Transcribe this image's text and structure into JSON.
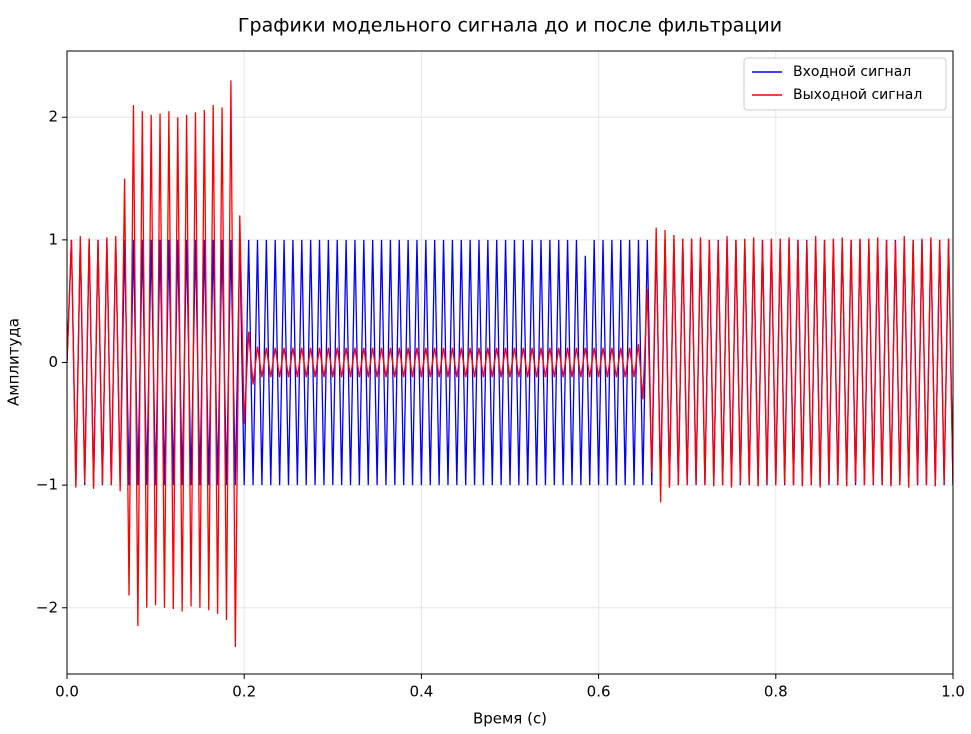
{
  "chart_data": {
    "type": "line",
    "title": "Графики модельного сигнала до и после фильтрации",
    "xlabel": "Время (с)",
    "ylabel": "Амплитуда",
    "x": [
      0,
      0.005,
      0.01,
      0.015,
      0.02,
      0.025,
      0.03,
      0.035,
      0.04,
      0.045,
      0.05,
      0.055,
      0.06,
      0.065,
      0.07,
      0.075,
      0.08,
      0.085,
      0.09,
      0.095,
      0.1,
      0.105,
      0.11,
      0.115,
      0.12,
      0.125,
      0.13,
      0.135,
      0.14,
      0.145,
      0.15,
      0.155,
      0.16,
      0.165,
      0.17,
      0.175,
      0.18,
      0.185,
      0.19,
      0.195,
      0.2,
      0.205,
      0.21,
      0.215,
      0.22,
      0.225,
      0.23,
      0.235,
      0.24,
      0.245,
      0.25,
      0.255,
      0.26,
      0.265,
      0.27,
      0.275,
      0.28,
      0.285,
      0.29,
      0.295,
      0.3,
      0.305,
      0.31,
      0.315,
      0.32,
      0.325,
      0.33,
      0.335,
      0.34,
      0.345,
      0.35,
      0.355,
      0.36,
      0.365,
      0.37,
      0.375,
      0.38,
      0.385,
      0.39,
      0.395,
      0.4,
      0.405,
      0.41,
      0.415,
      0.42,
      0.425,
      0.43,
      0.435,
      0.44,
      0.445,
      0.45,
      0.455,
      0.46,
      0.465,
      0.47,
      0.475,
      0.48,
      0.485,
      0.49,
      0.495,
      0.5,
      0.505,
      0.51,
      0.515,
      0.52,
      0.525,
      0.53,
      0.535,
      0.54,
      0.545,
      0.55,
      0.555,
      0.56,
      0.565,
      0.57,
      0.575,
      0.58,
      0.585,
      0.59,
      0.595,
      0.6,
      0.605,
      0.61,
      0.615,
      0.62,
      0.625,
      0.63,
      0.635,
      0.64,
      0.645,
      0.65,
      0.655,
      0.66,
      0.665,
      0.67,
      0.675,
      0.68,
      0.685,
      0.69,
      0.695,
      0.7,
      0.705,
      0.71,
      0.715,
      0.72,
      0.725,
      0.73,
      0.735,
      0.74,
      0.745,
      0.75,
      0.755,
      0.76,
      0.765,
      0.77,
      0.775,
      0.78,
      0.785,
      0.79,
      0.795,
      0.8,
      0.805,
      0.81,
      0.815,
      0.82,
      0.825,
      0.83,
      0.835,
      0.84,
      0.845,
      0.85,
      0.855,
      0.86,
      0.865,
      0.87,
      0.875,
      0.88,
      0.885,
      0.89,
      0.895,
      0.9,
      0.905,
      0.91,
      0.915,
      0.92,
      0.925,
      0.93,
      0.935,
      0.94,
      0.945,
      0.95,
      0.955,
      0.96,
      0.965,
      0.97,
      0.975,
      0.98,
      0.985,
      0.99,
      0.995,
      1
    ],
    "series": [
      {
        "name": "Входной сигнал",
        "color": "#0000ff",
        "values": [
          0,
          1,
          -1,
          1,
          -1,
          1,
          -1,
          1,
          -1,
          1,
          -1,
          1,
          -1,
          1,
          -1,
          1,
          -1,
          1,
          -1,
          1,
          -1,
          1,
          -1,
          1,
          -1,
          1,
          -1,
          1,
          -1,
          1,
          -1,
          1,
          -1,
          1,
          -1,
          1,
          -1,
          1,
          -1,
          1,
          -1,
          1,
          -1,
          1,
          -1,
          1,
          -1,
          1,
          -1,
          1,
          -1,
          1,
          -1,
          1,
          -1,
          1,
          -1,
          1,
          -1,
          1,
          -1,
          1,
          -1,
          1,
          -1,
          1,
          -1,
          1,
          -1,
          1,
          -1,
          1,
          -1,
          1,
          -1,
          1,
          -1,
          1,
          -1,
          1,
          -1,
          1,
          -1,
          1,
          -1,
          1,
          -1,
          1,
          -1,
          1,
          -1,
          1,
          -1,
          1,
          -1,
          1,
          -1,
          1,
          -1,
          1,
          -1,
          1,
          -1,
          1,
          -1,
          1,
          -1,
          1,
          -1,
          1,
          -1,
          1,
          -1,
          1,
          -1,
          1,
          -1,
          0.87,
          -1,
          1,
          -1,
          1,
          -1,
          1,
          -1,
          1,
          -1,
          1,
          -1,
          1,
          -1,
          1,
          -1,
          1,
          -1,
          1,
          -1,
          1,
          -1,
          1,
          -1,
          1,
          -1,
          1,
          -1,
          1,
          -1,
          1,
          -1,
          1,
          -1,
          1,
          -1,
          1,
          -1,
          1,
          -1,
          1,
          -1,
          1,
          -1,
          1,
          -1,
          1,
          -1,
          1,
          -1,
          1,
          -1,
          1,
          -1,
          1,
          -1,
          1,
          -1,
          1,
          -1,
          1,
          -1,
          1,
          -1,
          1,
          -1,
          1,
          -1,
          1,
          -1,
          1,
          -1,
          1,
          -1,
          1,
          -1,
          1,
          -1,
          1,
          -1,
          1,
          -1,
          1,
          -1
        ]
      },
      {
        "name": "Выходной сигнал",
        "color": "#ff0000",
        "values": [
          0,
          1.0,
          -1.02,
          1.03,
          -0.98,
          1.01,
          -1.03,
          1.0,
          -0.99,
          1.02,
          -1.0,
          1.03,
          -1.05,
          1.5,
          -1.9,
          2.1,
          -2.15,
          2.05,
          -2.0,
          2.02,
          -1.98,
          2.03,
          -2.0,
          2.05,
          -2.01,
          2.0,
          -2.03,
          2.02,
          -1.99,
          2.04,
          -2.0,
          2.06,
          -2.02,
          2.1,
          -2.05,
          2.08,
          -2.1,
          2.3,
          -2.32,
          1.2,
          -0.5,
          0.25,
          -0.18,
          0.13,
          -0.12,
          0.12,
          -0.12,
          0.12,
          -0.12,
          0.12,
          -0.12,
          0.12,
          -0.12,
          0.12,
          -0.12,
          0.12,
          -0.12,
          0.12,
          -0.12,
          0.12,
          -0.12,
          0.12,
          -0.12,
          0.12,
          -0.12,
          0.12,
          -0.12,
          0.12,
          -0.12,
          0.12,
          -0.12,
          0.12,
          -0.12,
          0.12,
          -0.12,
          0.12,
          -0.12,
          0.12,
          -0.12,
          0.12,
          -0.12,
          0.12,
          -0.12,
          0.12,
          -0.12,
          0.12,
          -0.12,
          0.12,
          -0.12,
          0.12,
          -0.12,
          0.12,
          -0.12,
          0.12,
          -0.12,
          0.12,
          -0.12,
          0.12,
          -0.12,
          0.12,
          -0.12,
          0.12,
          -0.12,
          0.12,
          -0.12,
          0.12,
          -0.12,
          0.12,
          -0.12,
          0.12,
          -0.12,
          0.12,
          -0.12,
          0.12,
          -0.12,
          0.12,
          -0.12,
          0.12,
          -0.12,
          0.12,
          -0.12,
          0.12,
          -0.12,
          0.12,
          -0.12,
          0.12,
          -0.12,
          0.12,
          -0.12,
          0.15,
          -0.3,
          0.6,
          -0.9,
          1.1,
          -1.14,
          1.08,
          -1.02,
          1.04,
          -1.0,
          1.01,
          -1.0,
          1.01,
          -0.99,
          1.02,
          -1.0,
          1.0,
          -1.01,
          0.99,
          -1.0,
          1.03,
          -1.02,
          1.0,
          -0.99,
          1.01,
          -1.0,
          1.02,
          -1.01,
          1.0,
          -0.98,
          1.01,
          -1.0,
          1.01,
          -0.99,
          1.02,
          -1.0,
          1.0,
          -1.01,
          0.99,
          -1.0,
          1.03,
          -1.02,
          1.0,
          -0.99,
          1.01,
          -1.0,
          1.02,
          -1.01,
          1.0,
          -0.98,
          1.01,
          -1.0,
          1.01,
          -0.99,
          1.02,
          -1.0,
          1.0,
          -1.01,
          0.99,
          -1.0,
          1.03,
          -1.02,
          1.0,
          -0.99,
          1.01,
          -1.0,
          1.02,
          -1.01,
          1.0,
          -0.98,
          1.01,
          -1.0
        ]
      }
    ],
    "xlim": [
      0,
      1
    ],
    "ylim": [
      -2.54,
      2.54
    ],
    "xticks": [
      {
        "value": 0,
        "label": "0.0"
      },
      0.2,
      0.4,
      0.6,
      0.8,
      {
        "value": 1,
        "label": "1.0"
      }
    ],
    "yticks": [
      {
        "value": -2,
        "label": "−2"
      },
      {
        "value": -1,
        "label": "−1"
      },
      0,
      1,
      2
    ],
    "grid": true,
    "legend": "upper right"
  }
}
